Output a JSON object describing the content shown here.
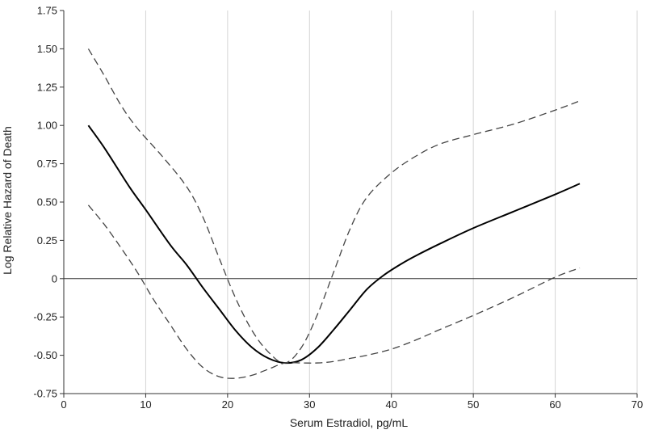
{
  "chart_data": {
    "type": "line",
    "title": "",
    "xlabel": "Serum Estradiol, pg/mL",
    "ylabel": "Log Relative Hazard of Death",
    "xlim": [
      0,
      70
    ],
    "ylim": [
      -0.75,
      1.75
    ],
    "xticks": [
      0,
      10,
      20,
      30,
      40,
      50,
      60,
      70
    ],
    "yticks": [
      -0.75,
      -0.5,
      -0.25,
      0,
      0.25,
      0.5,
      0.75,
      1.0,
      1.25,
      1.5,
      1.75
    ],
    "ytick_labels": [
      "-0.75",
      "-0.50",
      "-0.25",
      "0",
      "0.25",
      "0.50",
      "0.75",
      "1.00",
      "1.25",
      "1.50",
      "1.75"
    ],
    "reference_line_y": 0,
    "grid": "vertical",
    "series": [
      {
        "style": "solid",
        "color": "#000000",
        "x": [
          3,
          5,
          8,
          10,
          13,
          15,
          17,
          19,
          21,
          23,
          25,
          27,
          29,
          31,
          33,
          35,
          37,
          39,
          41,
          43,
          46,
          50,
          55,
          60,
          63
        ],
        "y": [
          1.0,
          0.85,
          0.6,
          0.45,
          0.22,
          0.09,
          -0.06,
          -0.2,
          -0.34,
          -0.45,
          -0.52,
          -0.55,
          -0.53,
          -0.45,
          -0.33,
          -0.2,
          -0.07,
          0.02,
          0.09,
          0.15,
          0.23,
          0.33,
          0.44,
          0.55,
          0.62
        ]
      },
      {
        "style": "dashed",
        "color": "#444444",
        "x": [
          3,
          5,
          7,
          9,
          12,
          15,
          17,
          19,
          21,
          23,
          25,
          27,
          29,
          31,
          33,
          35,
          37,
          40,
          43,
          46,
          50,
          55,
          60,
          63
        ],
        "y": [
          1.5,
          1.32,
          1.13,
          0.98,
          0.8,
          0.6,
          0.4,
          0.13,
          -0.13,
          -0.34,
          -0.48,
          -0.55,
          -0.45,
          -0.23,
          0.05,
          0.33,
          0.53,
          0.69,
          0.8,
          0.88,
          0.94,
          1.01,
          1.1,
          1.16
        ]
      },
      {
        "style": "dashed",
        "color": "#444444",
        "x": [
          3,
          5,
          7,
          9,
          11,
          13,
          15,
          17,
          19,
          21,
          23,
          25,
          27,
          29,
          31,
          33,
          35,
          37,
          40,
          43,
          46,
          50,
          55,
          60,
          63
        ],
        "y": [
          0.48,
          0.35,
          0.2,
          0.04,
          -0.14,
          -0.3,
          -0.46,
          -0.58,
          -0.64,
          -0.65,
          -0.63,
          -0.59,
          -0.55,
          -0.55,
          -0.55,
          -0.54,
          -0.52,
          -0.5,
          -0.46,
          -0.4,
          -0.33,
          -0.24,
          -0.12,
          0.01,
          0.07
        ]
      }
    ]
  }
}
